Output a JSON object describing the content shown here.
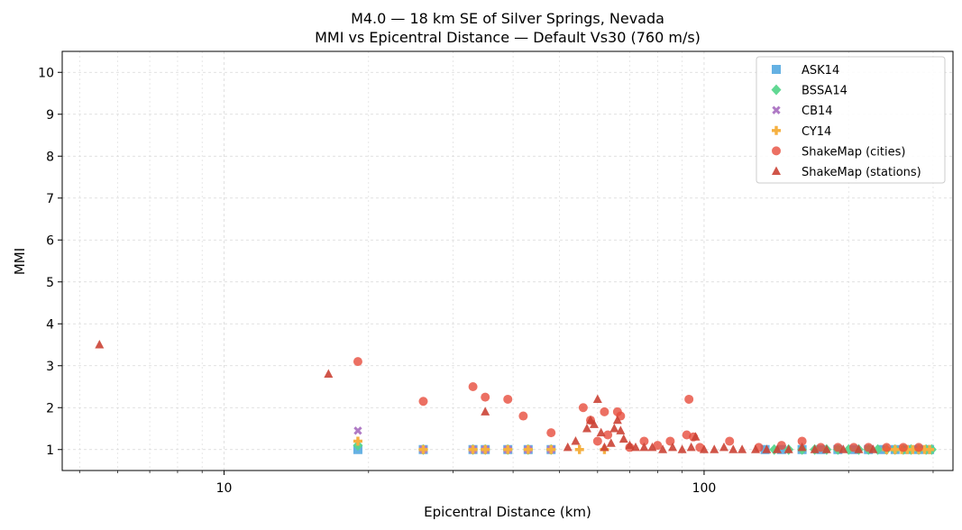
{
  "chart_data": {
    "type": "scatter",
    "title": "M4.0 — 18 km SE of Silver Springs, Nevada",
    "subtitle": "MMI vs Epicentral Distance — Default Vs30 (760 m/s)",
    "xlabel": "Epicentral Distance (km)",
    "ylabel": "MMI",
    "xscale": "log",
    "xlim": [
      4.6,
      330
    ],
    "ylim": [
      0.5,
      10.5
    ],
    "x_major_ticks": [
      10,
      100
    ],
    "x_major_tick_labels": [
      "10",
      "100"
    ],
    "y_ticks": [
      1,
      2,
      3,
      4,
      5,
      6,
      7,
      8,
      9,
      10
    ],
    "y_tick_labels": [
      "1",
      "2",
      "3",
      "4",
      "5",
      "6",
      "7",
      "8",
      "9",
      "10"
    ],
    "grid": true,
    "legend_position": "top-right",
    "series": [
      {
        "name": "ASK14",
        "marker": "square",
        "color": "#5DADE2",
        "x": [
          19,
          26,
          33,
          35,
          39,
          43,
          48,
          134,
          145,
          160,
          175,
          190,
          205,
          220,
          235,
          250,
          265,
          280,
          295
        ],
        "y": [
          1.0,
          1.0,
          1.0,
          1.0,
          1.0,
          1.0,
          1.0,
          1.0,
          1.0,
          1.0,
          1.0,
          1.0,
          1.0,
          1.0,
          1.0,
          1.0,
          1.0,
          1.0,
          1.0
        ]
      },
      {
        "name": "BSSA14",
        "marker": "diamond",
        "color": "#58D68D",
        "x": [
          19,
          26,
          33,
          35,
          39,
          43,
          48,
          140,
          150,
          160,
          170,
          180,
          190,
          200,
          210,
          220,
          230,
          240,
          250,
          260,
          270,
          280,
          290,
          298
        ],
        "y": [
          1.1,
          1.0,
          1.0,
          1.0,
          1.0,
          1.0,
          1.0,
          1.0,
          1.0,
          1.0,
          1.0,
          1.0,
          1.0,
          1.0,
          1.0,
          1.0,
          1.0,
          1.0,
          1.0,
          1.0,
          1.0,
          1.0,
          1.0,
          1.0
        ]
      },
      {
        "name": "CB14",
        "marker": "x",
        "color": "#AF7AC5",
        "x": [
          19,
          26,
          33,
          35,
          39,
          43,
          48
        ],
        "y": [
          1.45,
          1.0,
          1.0,
          1.0,
          1.0,
          1.0,
          1.0
        ]
      },
      {
        "name": "CY14",
        "marker": "plus",
        "color": "#F5B041",
        "x": [
          19,
          26,
          33,
          35,
          39,
          43,
          48,
          55,
          62,
          240,
          250,
          258,
          265,
          272,
          280,
          288,
          295
        ],
        "y": [
          1.2,
          1.0,
          1.0,
          1.0,
          1.0,
          1.0,
          1.0,
          1.0,
          1.0,
          1.0,
          1.0,
          1.0,
          1.0,
          1.0,
          1.0,
          1.0,
          1.0
        ]
      },
      {
        "name": "ShakeMap (cities)",
        "marker": "circle",
        "color": "#E74C3C",
        "x": [
          19,
          26,
          33,
          35,
          39,
          42,
          48,
          56,
          58,
          60,
          62,
          63,
          66,
          67,
          70,
          75,
          80,
          85,
          92,
          93,
          95,
          98,
          113,
          130,
          145,
          160,
          175,
          190,
          205,
          220,
          240,
          260,
          280
        ],
        "y": [
          3.1,
          2.15,
          2.5,
          2.25,
          2.2,
          1.8,
          1.4,
          2.0,
          1.7,
          1.2,
          1.9,
          1.35,
          1.9,
          1.8,
          1.05,
          1.2,
          1.1,
          1.2,
          1.35,
          2.2,
          1.3,
          1.05,
          1.2,
          1.05,
          1.1,
          1.2,
          1.05,
          1.05,
          1.05,
          1.05,
          1.05,
          1.05,
          1.05
        ]
      },
      {
        "name": "ShakeMap (stations)",
        "marker": "triangle",
        "color": "#CB4335",
        "x": [
          5.5,
          16.5,
          35,
          52,
          54,
          57,
          58,
          59,
          60,
          61,
          62,
          64,
          65,
          66,
          67,
          68,
          70,
          72,
          75,
          78,
          82,
          86,
          90,
          94,
          96,
          100,
          105,
          110,
          115,
          120,
          128,
          135,
          142,
          150,
          160,
          170,
          180,
          195,
          210,
          225
        ],
        "y": [
          3.5,
          2.8,
          1.9,
          1.05,
          1.2,
          1.5,
          1.7,
          1.6,
          2.2,
          1.4,
          1.05,
          1.15,
          1.5,
          1.7,
          1.45,
          1.25,
          1.1,
          1.05,
          1.05,
          1.05,
          1.0,
          1.05,
          1.0,
          1.05,
          1.3,
          1.0,
          1.0,
          1.05,
          1.0,
          1.0,
          1.0,
          1.0,
          1.0,
          1.0,
          1.05,
          1.0,
          1.0,
          1.0,
          1.0,
          1.0
        ]
      }
    ]
  }
}
